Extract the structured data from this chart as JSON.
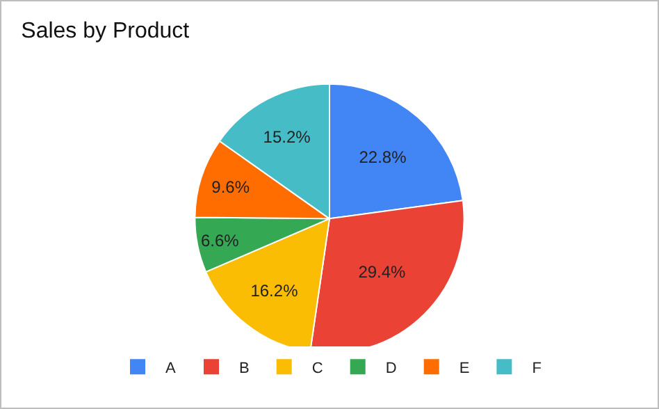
{
  "chart_data": {
    "type": "pie",
    "title": "Sales by Product",
    "categories": [
      "A",
      "B",
      "C",
      "D",
      "E",
      "F"
    ],
    "values": [
      22.8,
      29.4,
      16.2,
      6.6,
      9.6,
      15.2
    ],
    "value_labels": [
      "22.8%",
      "29.4%",
      "16.2%",
      "6.6%",
      "9.6%",
      "15.2%"
    ],
    "colors": [
      "#4285f4",
      "#ea4335",
      "#fbbc04",
      "#34a853",
      "#ff6d01",
      "#46bdc6"
    ],
    "legend": "bottom"
  }
}
